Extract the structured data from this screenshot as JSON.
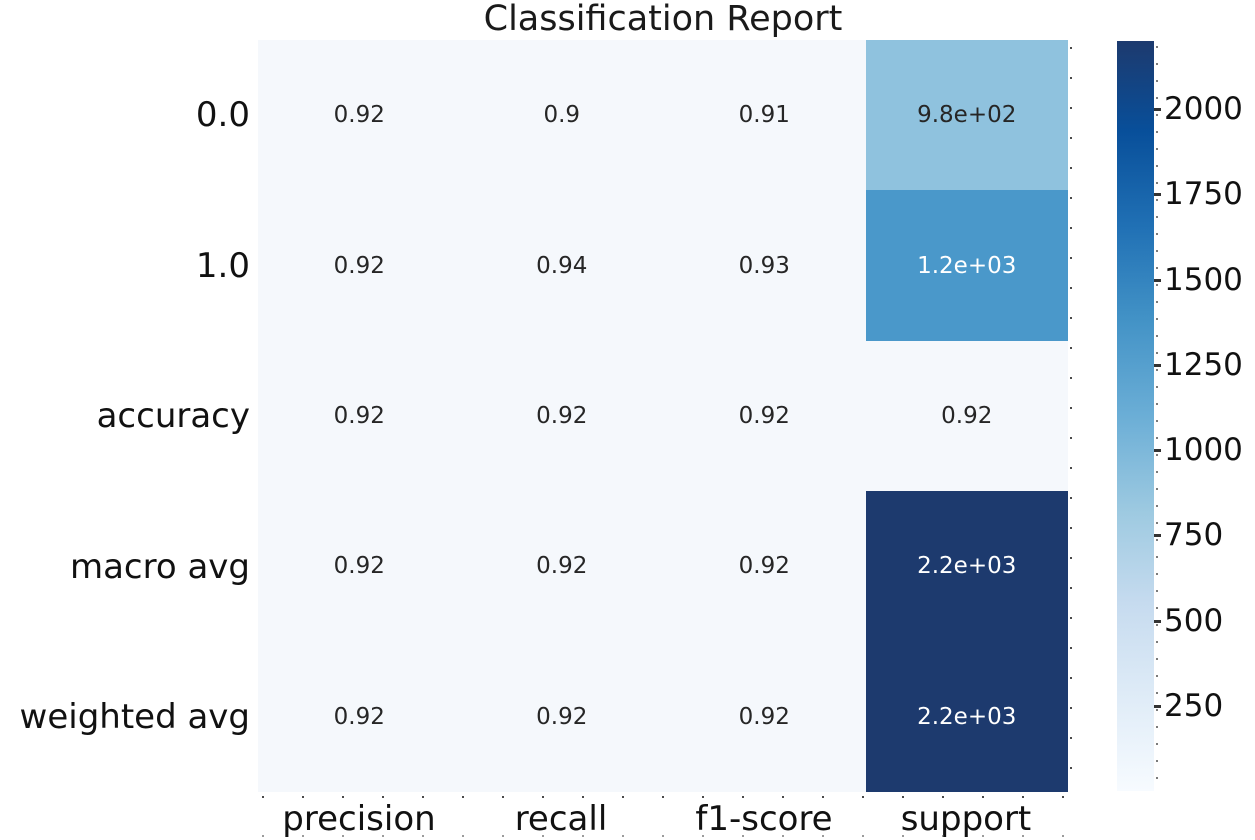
{
  "title": "Classification Report",
  "chart_data": {
    "type": "heatmap",
    "title": "Classification Report",
    "colormap": "Blues",
    "columns": [
      "precision",
      "recall",
      "f1-score",
      "support"
    ],
    "rows": [
      "0.0",
      "1.0",
      "accuracy",
      "macro avg",
      "weighted avg"
    ],
    "values": [
      [
        0.92,
        0.9,
        0.91,
        980
      ],
      [
        0.92,
        0.94,
        0.93,
        1200
      ],
      [
        0.92,
        0.92,
        0.92,
        0.92
      ],
      [
        0.92,
        0.92,
        0.92,
        2200
      ],
      [
        0.92,
        0.92,
        0.92,
        2200
      ]
    ],
    "cell_labels": [
      [
        "0.92",
        "0.9",
        "0.91",
        "9.8e+02"
      ],
      [
        "0.92",
        "0.94",
        "0.93",
        "1.2e+03"
      ],
      [
        "0.92",
        "0.92",
        "0.92",
        "0.92"
      ],
      [
        "0.92",
        "0.92",
        "0.92",
        "2.2e+03"
      ],
      [
        "0.92",
        "0.92",
        "0.92",
        "2.2e+03"
      ]
    ],
    "cell_colors": [
      [
        "#f5f8fc",
        "#f5f8fc",
        "#f5f8fc",
        "#8fc2de"
      ],
      [
        "#f5f8fc",
        "#f5f8fc",
        "#f5f8fc",
        "#4a98ca"
      ],
      [
        "#f5f8fc",
        "#f5f8fc",
        "#f5f8fc",
        "#f5f8fc"
      ],
      [
        "#f5f8fc",
        "#f5f8fc",
        "#f5f8fc",
        "#1d3a6e"
      ],
      [
        "#f5f8fc",
        "#f5f8fc",
        "#f5f8fc",
        "#1d3a6e"
      ]
    ],
    "cell_text_colors": [
      [
        "#262626",
        "#262626",
        "#262626",
        "#262626"
      ],
      [
        "#262626",
        "#262626",
        "#262626",
        "#ffffff"
      ],
      [
        "#262626",
        "#262626",
        "#262626",
        "#262626"
      ],
      [
        "#262626",
        "#262626",
        "#262626",
        "#ffffff"
      ],
      [
        "#262626",
        "#262626",
        "#262626",
        "#ffffff"
      ]
    ],
    "colorbar": {
      "ticks": [
        "2000",
        "1750",
        "1500",
        "1250",
        "1000",
        "750",
        "500",
        "250"
      ],
      "vmin": 0,
      "vmax": 2200,
      "top_color": "#1d3a6e",
      "bottom_color": "#f7fbff"
    },
    "layout": {
      "legend_position": "right-colorbar",
      "grid": false
    }
  },
  "colors": {
    "figure_background": "#ffffff",
    "low_cell": "#f5f8fc",
    "high_cell": "#1d3a6e",
    "text": "#111111"
  }
}
